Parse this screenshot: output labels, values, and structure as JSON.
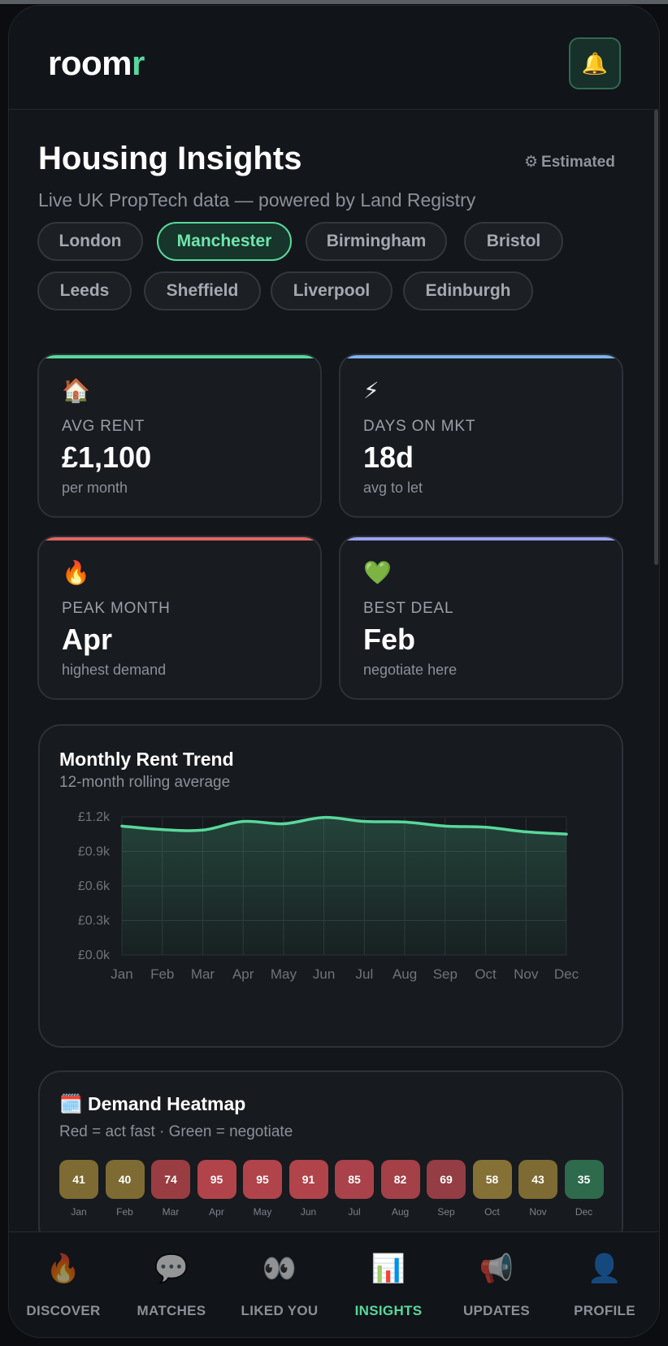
{
  "app": {
    "logo_main": "room",
    "logo_accent": "r",
    "bell_icon": "bell-icon"
  },
  "header": {
    "title": "Housing Insights",
    "estimated_label": "Estimated",
    "subtitle": "Live UK PropTech data — powered by Land Registry"
  },
  "cities": [
    {
      "label": "London",
      "active": false
    },
    {
      "label": "Manchester",
      "active": true
    },
    {
      "label": "Birmingham",
      "active": false
    },
    {
      "label": "Bristol",
      "active": false
    },
    {
      "label": "Leeds",
      "active": false
    },
    {
      "label": "Sheffield",
      "active": false
    },
    {
      "label": "Liverpool",
      "active": false
    },
    {
      "label": "Edinburgh",
      "active": false
    }
  ],
  "stats": [
    {
      "emoji": "🏠",
      "icon": "house-icon",
      "label": "AVG RENT",
      "value": "£1,100",
      "note": "per month",
      "accent": "#58d89c"
    },
    {
      "emoji": "⚡",
      "icon": "lightning-icon",
      "label": "DAYS ON MKT",
      "value": "18d",
      "note": "avg to let",
      "accent": "#7fb2f0"
    },
    {
      "emoji": "🔥",
      "icon": "fire-icon",
      "label": "PEAK MONTH",
      "value": "Apr",
      "note": "highest demand",
      "accent": "#e26464"
    },
    {
      "emoji": "💚",
      "icon": "green-heart-icon",
      "label": "BEST DEAL",
      "value": "Feb",
      "note": "negotiate here",
      "accent": "#9aa0f0"
    }
  ],
  "trend": {
    "title": "Monthly Rent Trend",
    "subtitle": "12-month rolling average"
  },
  "chart_data": {
    "type": "area",
    "categories": [
      "Jan",
      "Feb",
      "Mar",
      "Apr",
      "May",
      "Jun",
      "Jul",
      "Aug",
      "Sep",
      "Oct",
      "Nov",
      "Dec"
    ],
    "values": [
      1120,
      1090,
      1085,
      1160,
      1140,
      1195,
      1160,
      1155,
      1120,
      1110,
      1070,
      1050
    ],
    "y_ticks": [
      "£0.0k",
      "£0.3k",
      "£0.6k",
      "£0.9k",
      "£1.2k"
    ],
    "ylim": [
      0,
      1200
    ],
    "grid": true,
    "line_color": "#58d89c"
  },
  "heatmap": {
    "title": "Demand Heatmap",
    "icon": "calendar-icon",
    "subtitle": "Red = act fast · Green = negotiate",
    "cells": [
      {
        "month": "Jan",
        "value": "41",
        "color": "#7d6b33"
      },
      {
        "month": "Feb",
        "value": "40",
        "color": "#7d6b33"
      },
      {
        "month": "Mar",
        "value": "74",
        "color": "#9a3d42"
      },
      {
        "month": "Apr",
        "value": "95",
        "color": "#b1434a"
      },
      {
        "month": "May",
        "value": "95",
        "color": "#b1434a"
      },
      {
        "month": "Jun",
        "value": "91",
        "color": "#b1434a"
      },
      {
        "month": "Jul",
        "value": "85",
        "color": "#a9424a"
      },
      {
        "month": "Aug",
        "value": "82",
        "color": "#a34048"
      },
      {
        "month": "Sep",
        "value": "69",
        "color": "#943d44"
      },
      {
        "month": "Oct",
        "value": "58",
        "color": "#857036"
      },
      {
        "month": "Nov",
        "value": "43",
        "color": "#7d6b33"
      },
      {
        "month": "Dec",
        "value": "35",
        "color": "#2e6a4c"
      }
    ]
  },
  "nav": [
    {
      "label": "DISCOVER",
      "emoji": "🔥",
      "icon": "fire-icon",
      "active": false
    },
    {
      "label": "MATCHES",
      "emoji": "💬",
      "icon": "speech-bubble-icon",
      "active": false
    },
    {
      "label": "LIKED YOU",
      "emoji": "👀",
      "icon": "eyes-icon",
      "active": false
    },
    {
      "label": "INSIGHTS",
      "emoji": "📊",
      "icon": "bar-chart-icon",
      "active": true
    },
    {
      "label": "UPDATES",
      "emoji": "📢",
      "icon": "megaphone-icon",
      "active": false
    },
    {
      "label": "PROFILE",
      "emoji": "👤",
      "icon": "person-icon",
      "active": false
    }
  ]
}
